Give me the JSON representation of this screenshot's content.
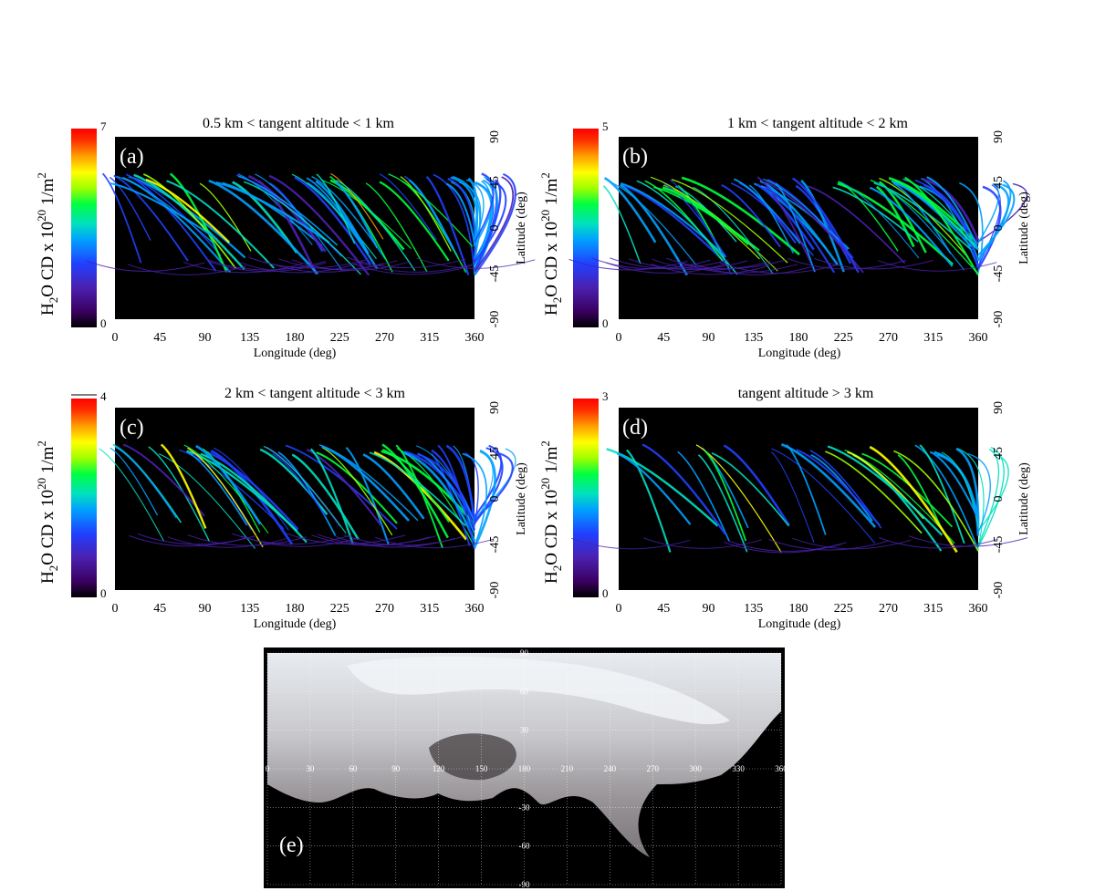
{
  "panels": [
    {
      "id": "a",
      "label": "(a)",
      "title": "0.5 km < tangent altitude < 1 km",
      "colorbar": {
        "min": "0",
        "max": "7",
        "label_prefix": "H",
        "label_sub1": "2",
        "label_mid": "O CD x 10",
        "label_sup": "20",
        "label_unit": " 1/m",
        "label_sup2": "2"
      },
      "xlabel": "Longitude (deg)",
      "ylabel": "Latitude (deg)",
      "xticks": [
        "0",
        "45",
        "90",
        "135",
        "180",
        "225",
        "270",
        "315",
        "360"
      ],
      "yticks": [
        "90",
        "45",
        "0",
        "-45",
        "-90"
      ]
    },
    {
      "id": "b",
      "label": "(b)",
      "title": "1 km < tangent altitude < 2 km",
      "colorbar": {
        "min": "0",
        "max": "5",
        "label_prefix": "H",
        "label_sub1": "2",
        "label_mid": "O CD x 10",
        "label_sup": "20",
        "label_unit": " 1/m",
        "label_sup2": "2"
      },
      "xlabel": "Longitude (deg)",
      "ylabel": "Latitude (deg)",
      "xticks": [
        "0",
        "45",
        "90",
        "135",
        "180",
        "225",
        "270",
        "315",
        "360"
      ],
      "yticks": [
        "90",
        "45",
        "0",
        "-45",
        "-90"
      ]
    },
    {
      "id": "c",
      "label": "(c)",
      "title": "2 km < tangent altitude < 3 km",
      "colorbar": {
        "min": "0",
        "max": "4",
        "label_prefix": "H",
        "label_sub1": "2",
        "label_mid": "O CD x 10",
        "label_sup": "20",
        "label_unit": " 1/m",
        "label_sup2": "2"
      },
      "xlabel": "Longitude (deg)",
      "ylabel": "Latitude (deg)",
      "xticks": [
        "0",
        "45",
        "90",
        "135",
        "180",
        "225",
        "270",
        "315",
        "360"
      ],
      "yticks": [
        "90",
        "45",
        "0",
        "-45",
        "-90"
      ]
    },
    {
      "id": "d",
      "label": "(d)",
      "title": "tangent altitude > 3 km",
      "colorbar": {
        "min": "0",
        "max": "3",
        "label_prefix": "H",
        "label_sub1": "2",
        "label_mid": "O CD x 10",
        "label_sup": "20",
        "label_unit": " 1/m",
        "label_sup2": "2"
      },
      "xlabel": "Longitude (deg)",
      "ylabel": "Latitude (deg)",
      "xticks": [
        "0",
        "45",
        "90",
        "135",
        "180",
        "225",
        "270",
        "315",
        "360"
      ],
      "yticks": [
        "90",
        "45",
        "0",
        "-45",
        "-90"
      ]
    }
  ],
  "map_panel": {
    "label": "(e)",
    "lon_ticks": [
      "0",
      "30",
      "60",
      "90",
      "120",
      "150",
      "180",
      "210",
      "240",
      "270",
      "300",
      "330",
      "360"
    ],
    "lat_ticks": [
      "90",
      "60",
      "30",
      "0",
      "-30",
      "-60",
      "-90"
    ]
  },
  "colormap": [
    "#000000",
    "#3a0060",
    "#4b20b0",
    "#2040ff",
    "#00a0ff",
    "#00e0c0",
    "#00ff40",
    "#a0ff00",
    "#ffff00",
    "#ffa000",
    "#ff3000",
    "#ff0000"
  ],
  "chart_data": [
    {
      "type": "heatmap",
      "title": "0.5 km < tangent altitude < 1 km",
      "xlabel": "Longitude (deg)",
      "ylabel": "Latitude (deg)",
      "xlim": [
        0,
        360
      ],
      "ylim": [
        -90,
        90
      ],
      "colorbar_range": [
        0,
        7
      ],
      "colorbar_label": "H2O CD x 10^20 1/m^2"
    },
    {
      "type": "heatmap",
      "title": "1 km < tangent altitude < 2 km",
      "xlabel": "Longitude (deg)",
      "ylabel": "Latitude (deg)",
      "xlim": [
        0,
        360
      ],
      "ylim": [
        -90,
        90
      ],
      "colorbar_range": [
        0,
        5
      ],
      "colorbar_label": "H2O CD x 10^20 1/m^2"
    },
    {
      "type": "heatmap",
      "title": "2 km < tangent altitude < 3 km",
      "xlabel": "Longitude (deg)",
      "ylabel": "Latitude (deg)",
      "xlim": [
        0,
        360
      ],
      "ylim": [
        -90,
        90
      ],
      "colorbar_range": [
        0,
        4
      ],
      "colorbar_label": "H2O CD x 10^20 1/m^2"
    },
    {
      "type": "heatmap",
      "title": "tangent altitude > 3 km",
      "xlabel": "Longitude (deg)",
      "ylabel": "Latitude (deg)",
      "xlim": [
        0,
        360
      ],
      "ylim": [
        -90,
        90
      ],
      "colorbar_range": [
        0,
        3
      ],
      "colorbar_label": "H2O CD x 10^20 1/m^2"
    }
  ]
}
